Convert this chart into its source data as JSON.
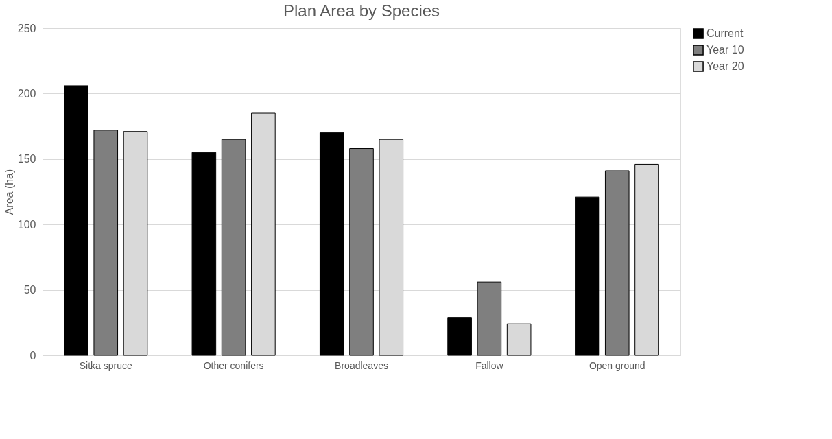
{
  "chart_data": {
    "type": "bar",
    "title": "Plan Area by Species",
    "ylabel": "Area (ha)",
    "categories": [
      "Sitka spruce",
      "Other conifers",
      "Broadleaves",
      "Fallow",
      "Open ground"
    ],
    "series": [
      {
        "name": "Current",
        "color": "#000000",
        "values": [
          206,
          155,
          170,
          29,
          121
        ]
      },
      {
        "name": "Year 10",
        "color": "#7f7f7f",
        "values": [
          172,
          165,
          158,
          56,
          141
        ]
      },
      {
        "name": "Year 20",
        "color": "#d9d9d9",
        "values": [
          171,
          185,
          165,
          24,
          146
        ]
      }
    ],
    "ylim": [
      0,
      250
    ],
    "yticks": [
      0,
      50,
      100,
      150,
      200,
      250
    ],
    "grid": "y",
    "legend": "right"
  }
}
